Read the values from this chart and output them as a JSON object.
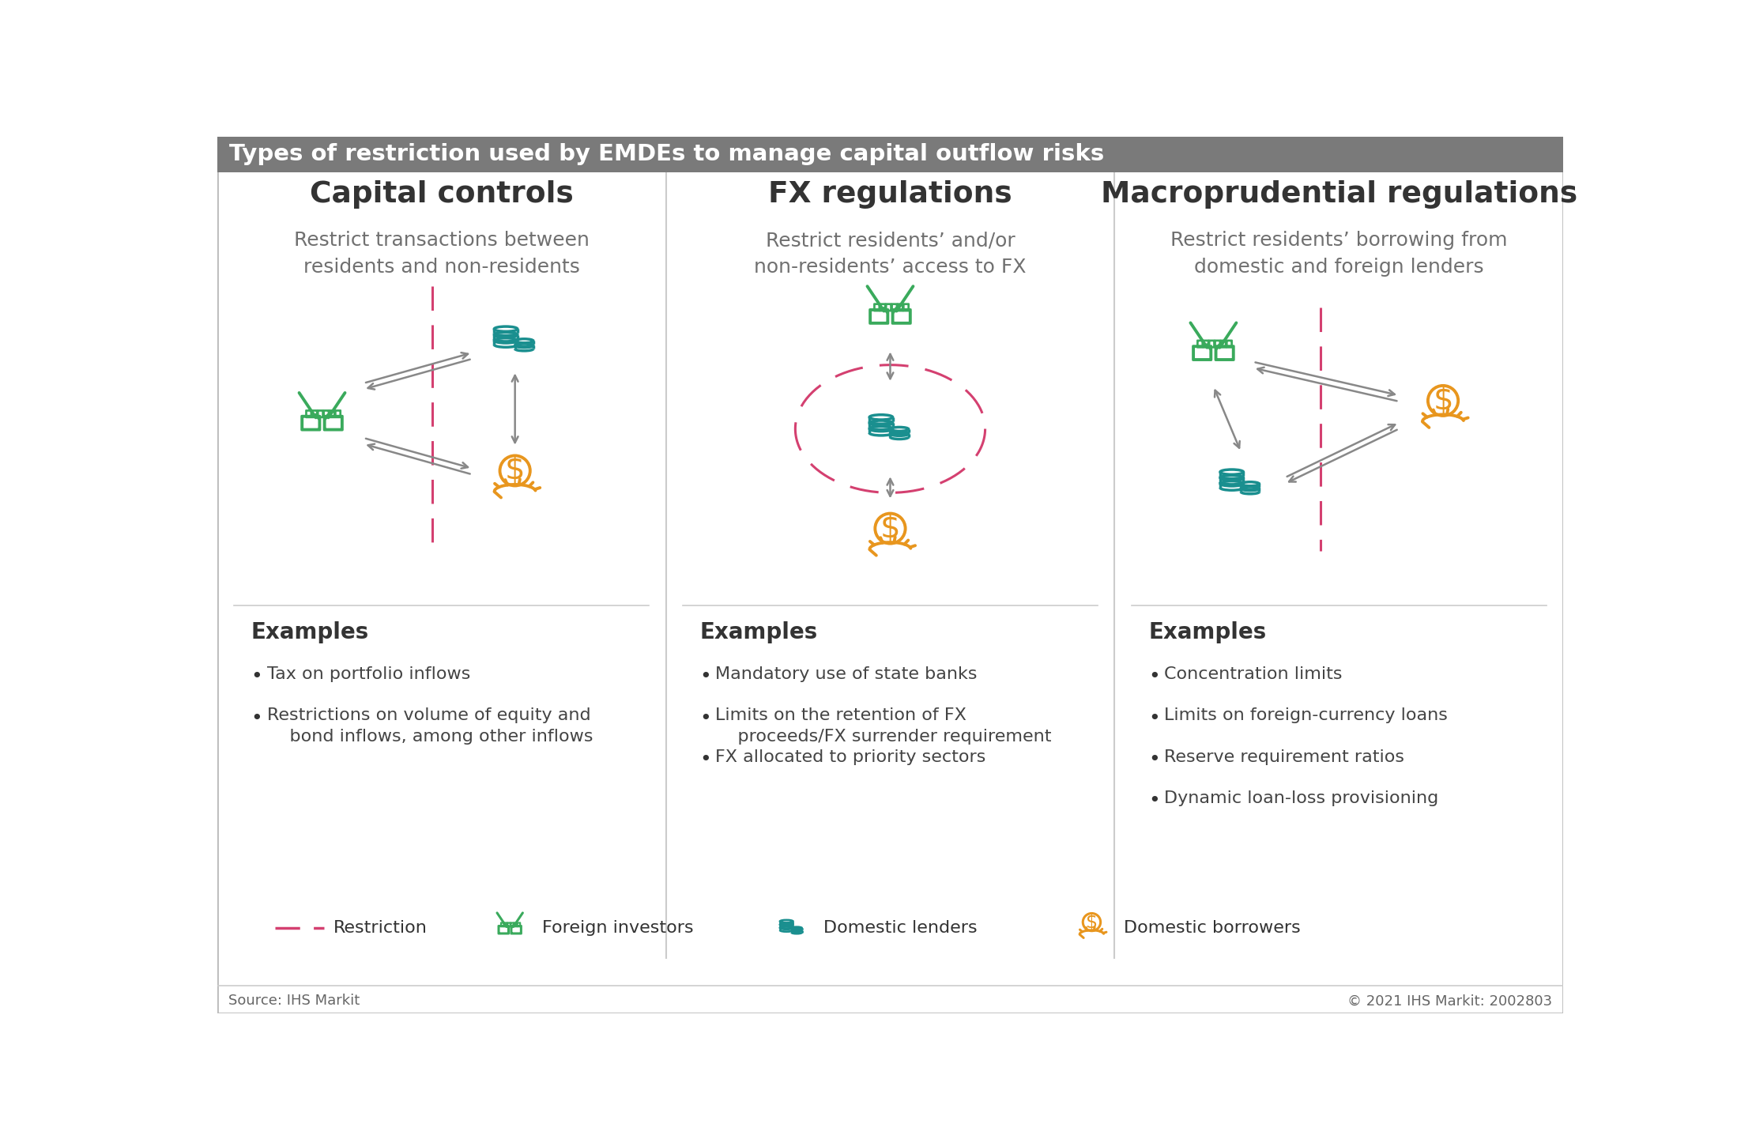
{
  "title": "Types of restriction used by EMDEs to manage capital outflow risks",
  "title_bg": "#7a7a7a",
  "title_color": "#ffffff",
  "main_bg": "#ffffff",
  "section_titles": [
    "Capital controls",
    "FX regulations",
    "Macroprudential regulations"
  ],
  "section_subtitles": [
    "Restrict transactions between\nresidents and non-residents",
    "Restrict residents’ and/or\nnon-residents’ access to FX",
    "Restrict residents’ borrowing from\ndomestic and foreign lenders"
  ],
  "examples_label": "Examples",
  "examples": [
    [
      "Tax on portfolio inflows",
      "Restrictions on volume of equity and\n    bond inflows, among other inflows"
    ],
    [
      "Mandatory use of state banks",
      "Limits on the retention of FX\n    proceeds/FX surrender requirement",
      "FX allocated to priority sectors"
    ],
    [
      "Concentration limits",
      "Limits on foreign-currency loans",
      "Reserve requirement ratios",
      "Dynamic loan-loss provisioning"
    ]
  ],
  "legend_items": [
    "Restriction",
    "Foreign investors",
    "Domestic lenders",
    "Domestic borrowers"
  ],
  "source_left": "Source: IHS Markit",
  "source_right": "© 2021 IHS Markit: 2002803",
  "green_color": "#3aaa5c",
  "teal_color": "#1a8f8f",
  "orange_color": "#e8961e",
  "pink_color": "#d44070",
  "arrow_color": "#888888",
  "text_dark": "#333333",
  "text_mid": "#666666",
  "divider_color": "#cccccc"
}
